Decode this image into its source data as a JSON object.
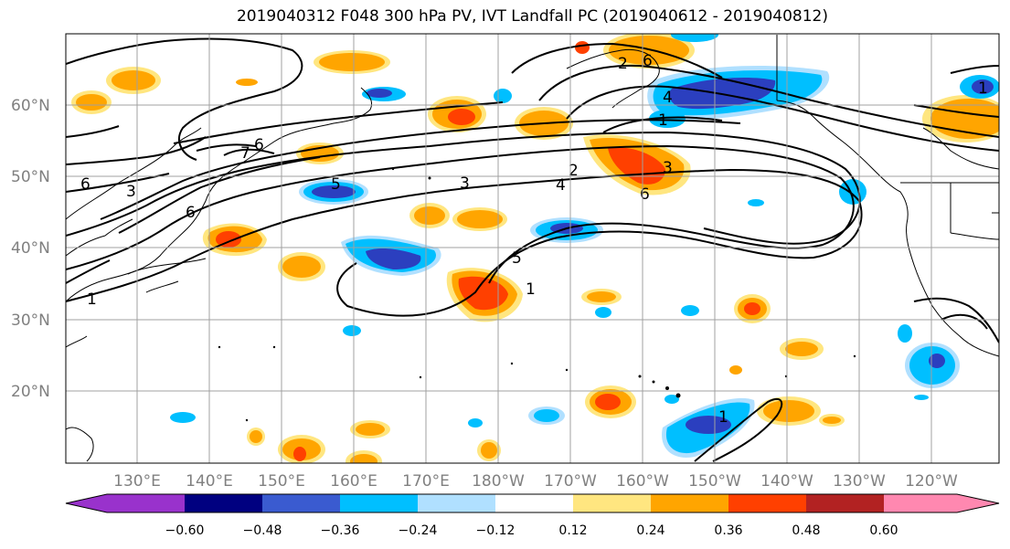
{
  "title": "2019040312 F048 300 hPa PV, IVT Landfall PC (2019040612 - 2019040812)",
  "map": {
    "lat_labels": [
      "60°N",
      "50°N",
      "40°N",
      "30°N",
      "20°N"
    ],
    "lon_labels": [
      "130°E",
      "140°E",
      "150°E",
      "160°E",
      "170°E",
      "180°W",
      "170°W",
      "160°W",
      "150°W",
      "140°W",
      "130°W",
      "120°W"
    ],
    "contour_labels": [
      "1",
      "1",
      "2",
      "3",
      "3",
      "4",
      "4",
      "5",
      "5",
      "6",
      "6",
      "6",
      "6",
      "7",
      "6",
      "2",
      "3",
      "1",
      "1",
      "1"
    ],
    "colors": {
      "strong_neg": "#2b3fbf",
      "mid_neg": "#00bfff",
      "weak_neg": "#b0e0ff",
      "weak_pos": "#ffe680",
      "mid_pos": "#ffa500",
      "strong_pos": "#ff4000",
      "grid": "#a0a0a0",
      "contour": "#000000"
    }
  },
  "colorbar": {
    "tick_labels": [
      "−0.60",
      "−0.48",
      "−0.36",
      "−0.24",
      "−0.12",
      "0.12",
      "0.24",
      "0.36",
      "0.48",
      "0.60"
    ],
    "colors": [
      "#9932cc",
      "#000080",
      "#3a5bd0",
      "#00bfff",
      "#b0e0ff",
      "#ffffff",
      "#ffe680",
      "#ffa500",
      "#ff4000",
      "#b22222",
      "#ff88b0"
    ]
  }
}
